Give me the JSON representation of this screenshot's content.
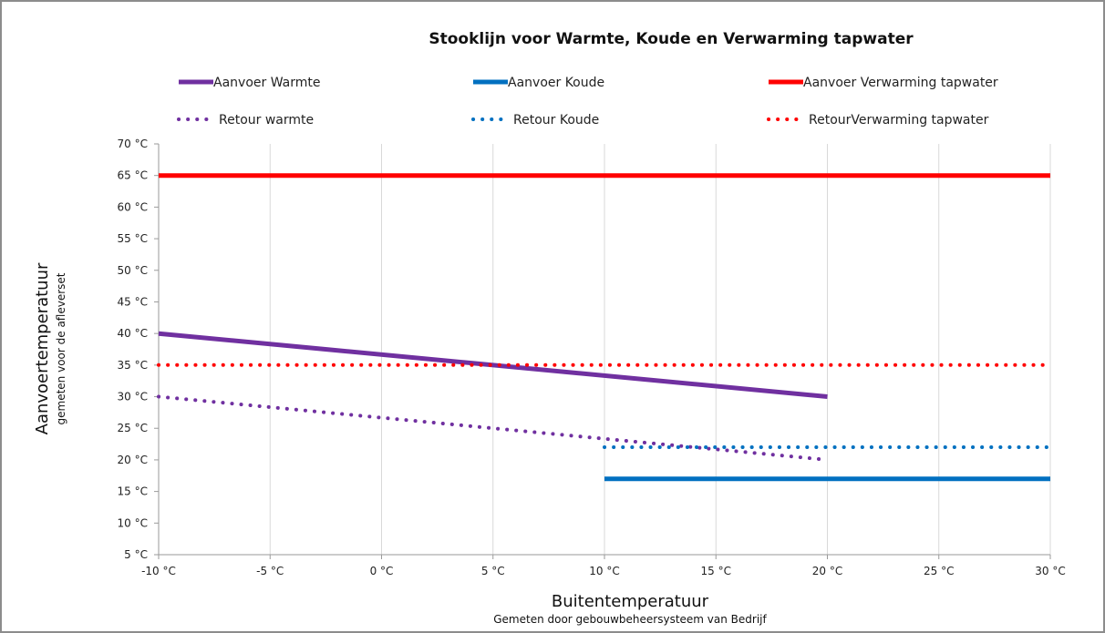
{
  "chart_data": {
    "type": "line",
    "title": "Stooklijn voor Warmte, Koude en Verwarming tapwater",
    "xlabel": "Buitentemperatuur",
    "xlabel_sub": "Gemeten door gebouwbeheersysteem van Bedrijf",
    "ylabel": "Aanvoertemperatuur",
    "ylabel_sub": "gemeten voor de afleverset",
    "xlim": [
      -10,
      30
    ],
    "ylim": [
      5,
      70
    ],
    "x_ticks": [
      -10,
      -5,
      0,
      5,
      10,
      15,
      20,
      25,
      30
    ],
    "y_ticks": [
      5,
      10,
      15,
      20,
      25,
      30,
      35,
      40,
      45,
      50,
      55,
      60,
      65,
      70
    ],
    "tick_suffix": " °C",
    "grid": "vertical",
    "legend_position": "top",
    "series": [
      {
        "name": "Aanvoer Warmte",
        "color": "#7030a0",
        "style": "solid",
        "x": [
          -10,
          20
        ],
        "y": [
          40,
          30
        ]
      },
      {
        "name": "Aanvoer Koude",
        "color": "#0070c0",
        "style": "solid",
        "x": [
          10,
          30
        ],
        "y": [
          17,
          17
        ]
      },
      {
        "name": "Aanvoer  Verwarming tapwater",
        "color": "#ff0000",
        "style": "solid",
        "x": [
          -10,
          30
        ],
        "y": [
          65,
          65
        ]
      },
      {
        "name": "Retour warmte",
        "color": "#7030a0",
        "style": "dotted",
        "x": [
          -10,
          20
        ],
        "y": [
          30,
          20
        ]
      },
      {
        "name": "Retour Koude",
        "color": "#0070c0",
        "style": "dotted",
        "x": [
          10,
          30
        ],
        "y": [
          22,
          22
        ]
      },
      {
        "name": "RetourVerwarming tapwater",
        "color": "#ff0000",
        "style": "dotted",
        "x": [
          -10,
          30
        ],
        "y": [
          35,
          35
        ]
      }
    ]
  }
}
